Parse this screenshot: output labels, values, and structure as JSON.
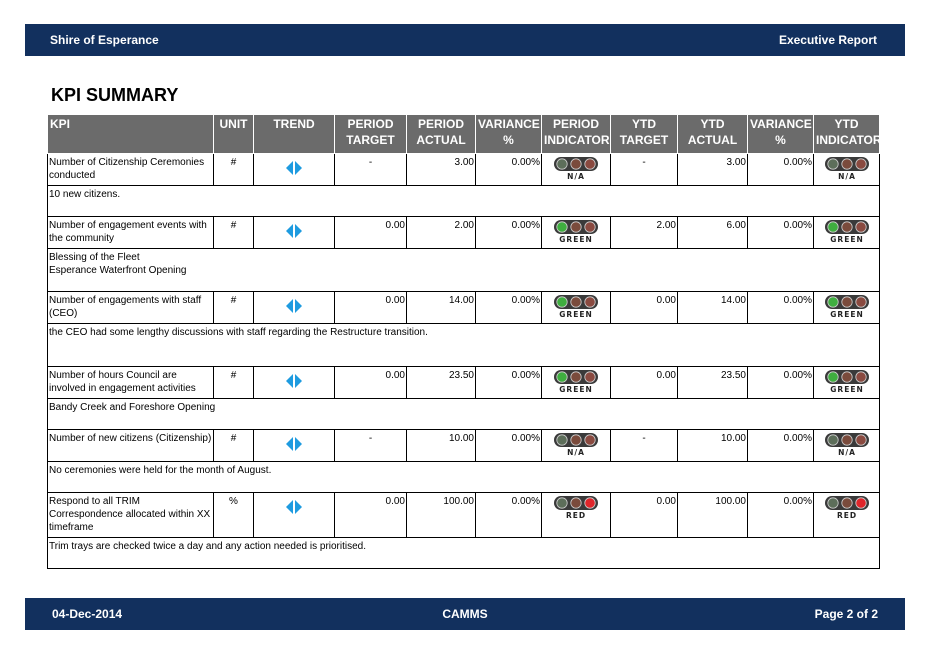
{
  "header": {
    "org": "Shire of Esperance",
    "report": "Executive Report"
  },
  "title": "KPI SUMMARY",
  "columns": {
    "kpi": "KPI",
    "unit": "UNIT",
    "trend": "TREND",
    "period_target_1": "PERIOD",
    "period_target_2": "TARGET",
    "period_actual_1": "PERIOD",
    "period_actual_2": "ACTUAL",
    "variance_1": "VARIANCE",
    "variance_2": "%",
    "period_indicator_1": "PERIOD",
    "period_indicator_2": "INDICATOR",
    "ytd_target_1": "YTD",
    "ytd_target_2": "TARGET",
    "ytd_actual_1": "YTD",
    "ytd_actual_2": "ACTUAL",
    "ytd_variance_1": "VARIANCE",
    "ytd_variance_2": "%",
    "ytd_indicator_1": "YTD",
    "ytd_indicator_2": "INDICATOR"
  },
  "rows": [
    {
      "kpi": "Number of Citizenship Ceremonies conducted",
      "unit": "#",
      "trend_icon": "diamond-arrows-icon",
      "period_target": "-",
      "period_actual": "3.00",
      "variance": "0.00%",
      "period_indicator": "N/A",
      "ytd_target": "-",
      "ytd_actual": "3.00",
      "ytd_variance": "0.00%",
      "ytd_indicator": "N/A",
      "comment": "10 new citizens."
    },
    {
      "kpi": "Number of engagement events with the community",
      "unit": "#",
      "trend_icon": "diamond-arrows-icon",
      "period_target": "0.00",
      "period_actual": "2.00",
      "variance": "0.00%",
      "period_indicator": "GREEN",
      "ytd_target": "2.00",
      "ytd_actual": "6.00",
      "ytd_variance": "0.00%",
      "ytd_indicator": "GREEN",
      "comment_lines": [
        "Blessing of the Fleet",
        "Esperance Waterfront Opening"
      ]
    },
    {
      "kpi": "Number of engagements with staff (CEO)",
      "unit": "#",
      "trend_icon": "diamond-arrows-icon",
      "period_target": "0.00",
      "period_actual": "14.00",
      "variance": "0.00%",
      "period_indicator": "GREEN",
      "ytd_target": "0.00",
      "ytd_actual": "14.00",
      "ytd_variance": "0.00%",
      "ytd_indicator": "GREEN",
      "comment": "the CEO had some lengthy discussions with staff  regarding the Restructure transition."
    },
    {
      "kpi": "Number of hours Council are involved in engagement activities",
      "unit": "#",
      "trend_icon": "diamond-arrows-icon",
      "period_target": "0.00",
      "period_actual": "23.50",
      "variance": "0.00%",
      "period_indicator": "GREEN",
      "ytd_target": "0.00",
      "ytd_actual": "23.50",
      "ytd_variance": "0.00%",
      "ytd_indicator": "GREEN",
      "comment": "Bandy Creek and Foreshore Opening"
    },
    {
      "kpi": "Number of new citizens (Citizenship)",
      "unit": "#",
      "trend_icon": "diamond-arrows-icon",
      "period_target": "-",
      "period_actual": "10.00",
      "variance": "0.00%",
      "period_indicator": "N/A",
      "ytd_target": "-",
      "ytd_actual": "10.00",
      "ytd_variance": "0.00%",
      "ytd_indicator": "N/A",
      "comment": "No ceremonies were held for the month of August."
    },
    {
      "kpi": "Respond to all TRIM Correspondence allocated within XX timeframe",
      "unit": "%",
      "trend_icon": "diamond-arrows-icon",
      "period_target": "0.00",
      "period_actual": "100.00",
      "variance": "0.00%",
      "period_indicator": "RED",
      "ytd_target": "0.00",
      "ytd_actual": "100.00",
      "ytd_variance": "0.00%",
      "ytd_indicator": "RED",
      "comment": "Trim trays are checked twice a day and any action needed is prioritised."
    }
  ],
  "colors": {
    "band": "#12305e",
    "header_grey": "#6b6b6b",
    "light_green": "#3fae3f",
    "light_red": "#e0262b",
    "light_off": "#7a4b3c",
    "trend_blue": "#1e9be0"
  },
  "footer": {
    "date": "04-Dec-2014",
    "brand": "CAMMS",
    "page": "Page 2 of 2"
  }
}
